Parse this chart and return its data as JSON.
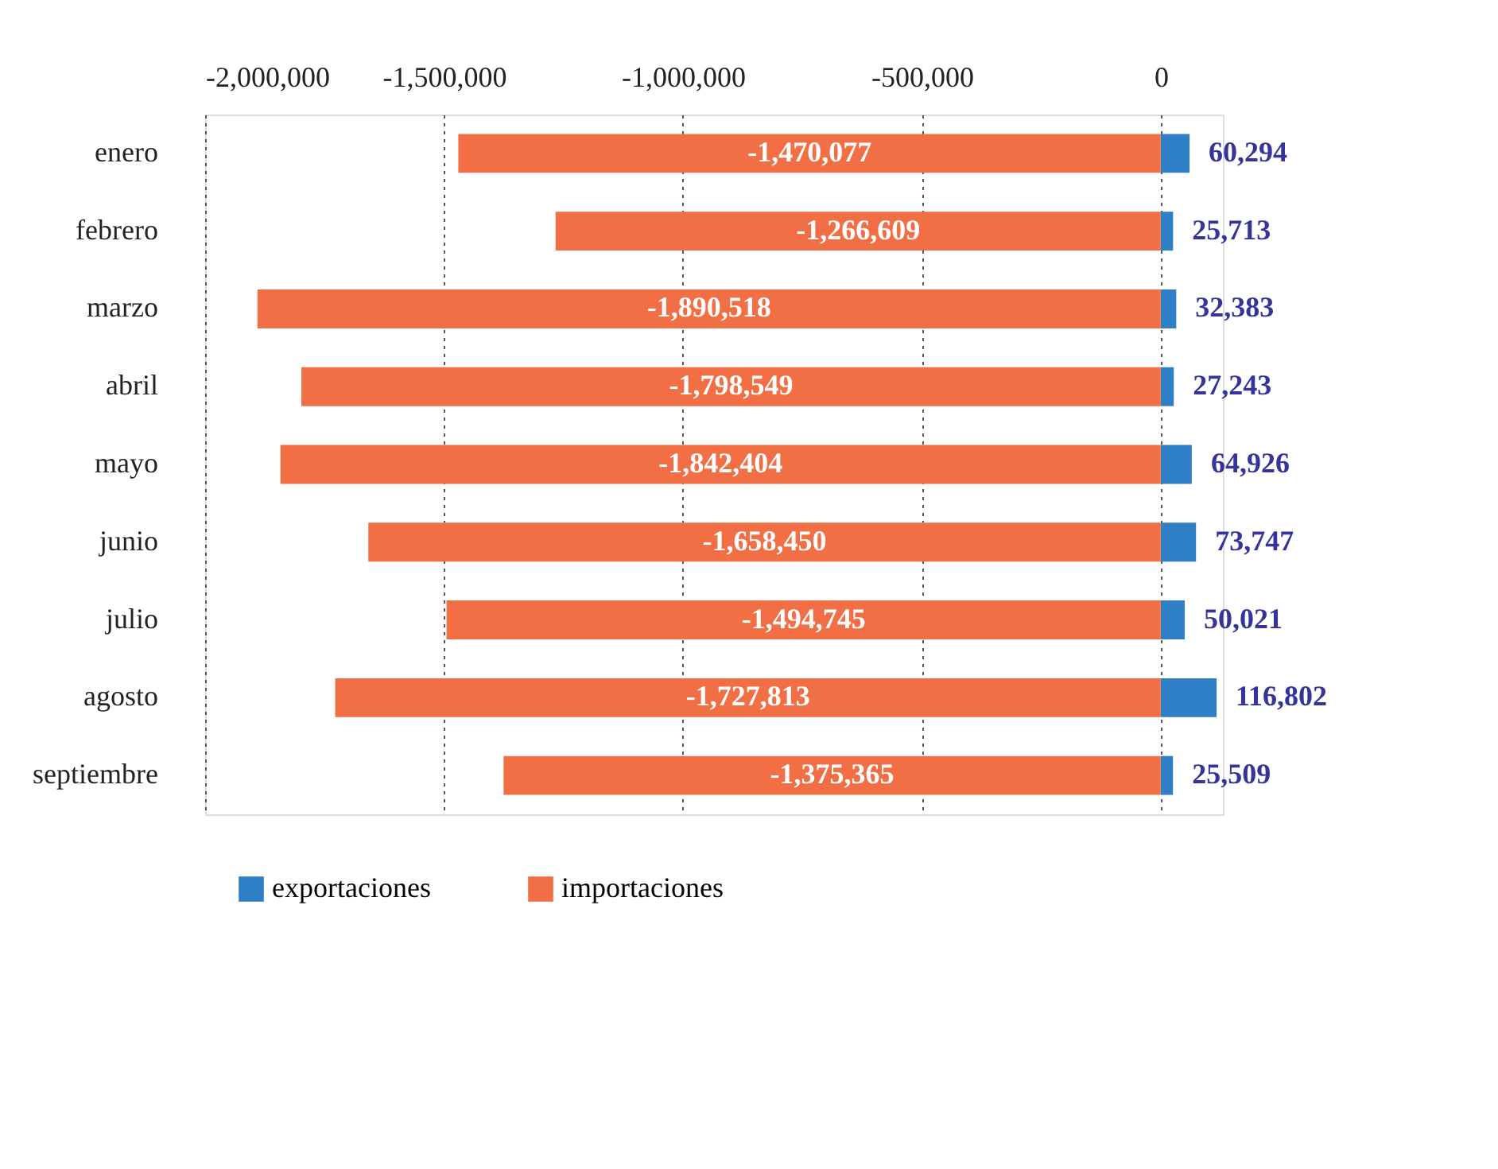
{
  "chart_data": {
    "type": "bar",
    "orientation": "horizontal",
    "stacked": true,
    "categories": [
      "enero",
      "febrero",
      "marzo",
      "abril",
      "mayo",
      "junio",
      "julio",
      "agosto",
      "septiembre"
    ],
    "series": [
      {
        "name": "exportaciones",
        "color": "#2f7fc6",
        "values": [
          60294,
          25713,
          32383,
          27243,
          64926,
          73747,
          50021,
          116802,
          25509
        ],
        "value_labels": [
          "60,294",
          "25,713",
          "32,383",
          "27,243",
          "64,926",
          "73,747",
          "50,021",
          "116,802",
          "25,509"
        ]
      },
      {
        "name": "importaciones",
        "color": "#f26f45",
        "values": [
          -1470077,
          -1266609,
          -1890518,
          -1798549,
          -1842404,
          -1658450,
          -1494745,
          -1727813,
          -1375365
        ],
        "value_labels": [
          "-1,470,077",
          "-1,266,609",
          "-1,890,518",
          "-1,798,549",
          "-1,842,404",
          "-1,658,450",
          "-1,494,745",
          "-1,727,813",
          "-1,375,365"
        ]
      }
    ],
    "xlim": [
      -2000000,
      130000
    ],
    "xticks": [
      {
        "value": -2000000,
        "label": "-2,000,000"
      },
      {
        "value": -1500000,
        "label": "-1,500,000"
      },
      {
        "value": -1000000,
        "label": "-1,000,000"
      },
      {
        "value": -500000,
        "label": "-500,000"
      },
      0
    ],
    "grid": "x",
    "legend": "bottom"
  }
}
